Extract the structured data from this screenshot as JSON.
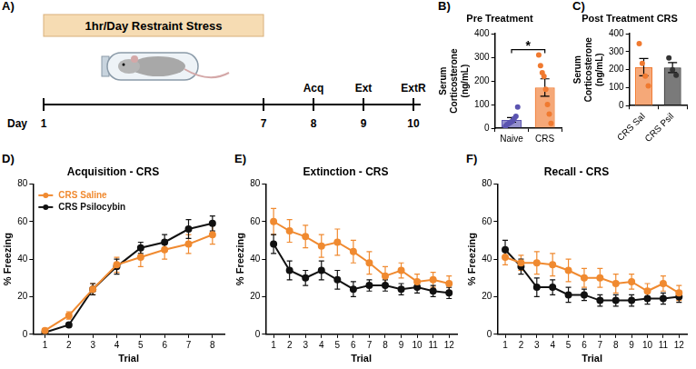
{
  "timeline": {
    "panel": "A)",
    "bar_label": "1hr/Day Restraint Stress",
    "axis_label": "Day",
    "days": [
      {
        "day": 1
      },
      {
        "day": 7
      },
      {
        "day": 8,
        "label": "Acq"
      },
      {
        "day": 9,
        "label": "Ext"
      },
      {
        "day": 10,
        "label": "ExtR"
      }
    ]
  },
  "chart_data": [
    {
      "panel": "B)",
      "type": "bar",
      "title": "Pre Treatment",
      "y_label": "Serum Corticosterone (ng/mL)",
      "categories": [
        "Naive",
        "CRS"
      ],
      "values": [
        35,
        172
      ],
      "errors": [
        10,
        37
      ],
      "points": [
        [
          8,
          15,
          20,
          25,
          30,
          40,
          50,
          90
        ],
        [
          310,
          265,
          235,
          220,
          165,
          100,
          60,
          20
        ]
      ],
      "colors": [
        "#5b54b0",
        "#f07a30"
      ],
      "ylim": [
        0,
        400
      ],
      "yticks": [
        0,
        100,
        200,
        300,
        400
      ],
      "grid": false,
      "annotation": "*"
    },
    {
      "panel": "C)",
      "type": "bar",
      "title": "Post Treatment CRS",
      "y_label": "Serum Corticosterone (ng/mL)",
      "categories": [
        "CRS Sal",
        "CRS Psil"
      ],
      "values": [
        214,
        212
      ],
      "errors": [
        48,
        28
      ],
      "points": [
        [
          345,
          235,
          165,
          110
        ],
        [
          265,
          200,
          170
        ]
      ],
      "colors": [
        "#f07a30",
        "#333333"
      ],
      "ylim": [
        0,
        400
      ],
      "yticks": [
        0,
        100,
        200,
        300,
        400
      ],
      "grid": false
    },
    {
      "panel": "D)",
      "type": "line",
      "title": "Acquisition - CRS",
      "x_label": "Trial",
      "y_label": "% Freezing",
      "categories": [
        1,
        2,
        3,
        4,
        5,
        6,
        7,
        8
      ],
      "series": [
        {
          "name": "CRS Saline",
          "color": "#f08a30",
          "values": [
            2,
            10,
            24,
            37,
            41,
            45,
            48,
            53
          ],
          "errors": [
            1,
            2,
            3,
            4,
            5,
            5,
            5,
            5
          ]
        },
        {
          "name": "CRS Psilocybin",
          "color": "#111111",
          "values": [
            1,
            5,
            24,
            36,
            46,
            49,
            56,
            59
          ],
          "errors": [
            1,
            1,
            3,
            4,
            3,
            4,
            5,
            4
          ]
        }
      ],
      "ylim": [
        0,
        80
      ],
      "yticks": [
        0,
        20,
        40,
        60,
        80
      ],
      "grid": false,
      "legend": "top-left",
      "marker": "circle"
    },
    {
      "panel": "E)",
      "type": "line",
      "title": "Extinction - CRS",
      "x_label": "Trial",
      "y_label": "% Freezing",
      "categories": [
        1,
        2,
        3,
        4,
        5,
        6,
        7,
        8,
        9,
        10,
        11,
        12
      ],
      "series": [
        {
          "name": "CRS Saline",
          "color": "#f08a30",
          "values": [
            60,
            55,
            52,
            47,
            49,
            44,
            38,
            31,
            34,
            28,
            29,
            27
          ],
          "errors": [
            7,
            6,
            6,
            6,
            7,
            6,
            6,
            5,
            4,
            4,
            4,
            4
          ]
        },
        {
          "name": "CRS Psilocybin",
          "color": "#111111",
          "values": [
            48,
            34,
            30,
            34,
            29,
            24,
            26,
            26,
            24,
            25,
            23,
            22
          ],
          "errors": [
            5,
            5,
            4,
            5,
            5,
            4,
            3,
            3,
            3,
            3,
            3,
            3
          ]
        }
      ],
      "ylim": [
        0,
        80
      ],
      "yticks": [
        0,
        20,
        40,
        60,
        80
      ],
      "grid": false,
      "marker": "circle"
    },
    {
      "panel": "F)",
      "type": "line",
      "title": "Recall - CRS",
      "x_label": "Trial",
      "y_label": "% Freezing",
      "categories": [
        1,
        2,
        3,
        4,
        5,
        6,
        7,
        8,
        9,
        10,
        11,
        12
      ],
      "series": [
        {
          "name": "CRS Saline",
          "color": "#f08a30",
          "values": [
            41,
            38,
            38,
            37,
            34,
            30,
            30,
            27,
            28,
            23,
            27,
            22
          ],
          "errors": [
            4,
            4,
            6,
            6,
            6,
            5,
            5,
            5,
            4,
            4,
            4,
            4
          ]
        },
        {
          "name": "CRS Psilocybin",
          "color": "#111111",
          "values": [
            45,
            36,
            25,
            25,
            21,
            21,
            18,
            18,
            18,
            19,
            19,
            20
          ],
          "errors": [
            5,
            4,
            5,
            4,
            4,
            3,
            3,
            3,
            3,
            3,
            3,
            3
          ]
        }
      ],
      "ylim": [
        0,
        80
      ],
      "yticks": [
        0,
        20,
        40,
        60,
        80
      ],
      "grid": false,
      "marker": "circle"
    }
  ]
}
